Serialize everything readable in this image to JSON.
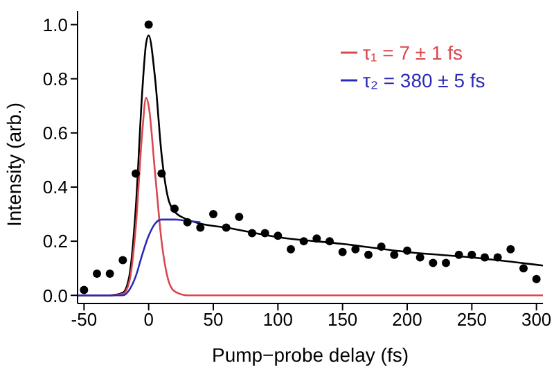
{
  "chart_data": {
    "type": "scatter",
    "xlabel": "Pump−probe delay (fs)",
    "ylabel": "Intensity (arb.)",
    "xlim": [
      -55,
      305
    ],
    "ylim": [
      -0.03,
      1.05
    ],
    "xticks": [
      -50,
      0,
      50,
      100,
      150,
      200,
      250,
      300
    ],
    "yticks": [
      {
        "value": 0,
        "label": "0.0"
      },
      0.2,
      0.4,
      0.6,
      0.8,
      {
        "value": 1,
        "label": "1.0"
      }
    ],
    "grid": false,
    "legend": "top right",
    "line_style": "solid",
    "series": [
      {
        "marker": "circle",
        "color": "#000000",
        "x": [
          -50,
          -40,
          -30,
          -20,
          -10,
          0,
          10,
          20,
          30,
          40,
          50,
          60,
          70,
          80,
          90,
          100,
          110,
          120,
          130,
          140,
          150,
          160,
          170,
          180,
          190,
          200,
          210,
          220,
          230,
          240,
          250,
          260,
          270,
          280,
          290,
          300
        ],
        "values": [
          0.02,
          0.08,
          0.08,
          0.13,
          0.45,
          1.0,
          0.45,
          0.32,
          0.27,
          0.25,
          0.3,
          0.25,
          0.29,
          0.23,
          0.23,
          0.22,
          0.17,
          0.2,
          0.21,
          0.2,
          0.16,
          0.17,
          0.15,
          0.18,
          0.15,
          0.165,
          0.14,
          0.12,
          0.12,
          0.15,
          0.15,
          0.14,
          0.14,
          0.17,
          0.1,
          0.06
        ]
      },
      {
        "type": "line",
        "color": "#000000",
        "x": [
          -55,
          -30,
          -20,
          -15,
          -10,
          -5,
          -2,
          0,
          5,
          10,
          15,
          20,
          30,
          40,
          60,
          100,
          150,
          200,
          250,
          305
        ],
        "values": [
          0,
          0,
          0.01,
          0.07,
          0.32,
          0.75,
          0.93,
          0.96,
          0.8,
          0.52,
          0.36,
          0.31,
          0.28,
          0.265,
          0.25,
          0.215,
          0.19,
          0.16,
          0.14,
          0.11
        ]
      },
      {
        "type": "line",
        "name": "τ₁ = 7 ± 1 fs",
        "color": "#d9484f",
        "x": [
          -55,
          -30,
          -20,
          -15,
          -10,
          -5,
          -2,
          0,
          5,
          10,
          15,
          20,
          30,
          40,
          60,
          100,
          150,
          200,
          250,
          305
        ],
        "values": [
          0,
          0,
          0.005,
          0.05,
          0.25,
          0.6,
          0.73,
          0.7,
          0.45,
          0.2,
          0.06,
          0.015,
          0,
          0,
          0,
          0,
          0,
          0,
          0,
          0
        ]
      },
      {
        "type": "line",
        "name": "τ₂ = 380 ± 5 fs",
        "color": "#2a2ab8",
        "x": [
          -55,
          -30,
          -20,
          -15,
          -10,
          -5,
          0,
          5,
          10,
          15,
          20,
          30,
          40
        ],
        "values": [
          0,
          0,
          0,
          0.02,
          0.07,
          0.15,
          0.22,
          0.265,
          0.28,
          0.28,
          0.28,
          0.275,
          0.27
        ]
      }
    ]
  }
}
